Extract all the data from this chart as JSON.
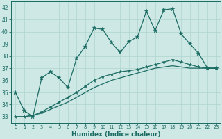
{
  "xlabel": "Humidex (Indice chaleur)",
  "xlim": [
    -0.5,
    23.5
  ],
  "ylim": [
    32.5,
    42.5
  ],
  "xticks": [
    0,
    1,
    2,
    3,
    4,
    5,
    6,
    7,
    8,
    9,
    10,
    11,
    12,
    13,
    14,
    15,
    16,
    17,
    18,
    19,
    20,
    21,
    22,
    23
  ],
  "yticks": [
    33,
    34,
    35,
    36,
    37,
    38,
    39,
    40,
    41,
    42
  ],
  "bg_color": "#cde8e5",
  "line_color": "#1a6b62",
  "line1_x": [
    0,
    1,
    2,
    3,
    4,
    5,
    6,
    7,
    8,
    9,
    10,
    11,
    12,
    13,
    14,
    15,
    16,
    17,
    18,
    19,
    20,
    21,
    22,
    23
  ],
  "line1_y": [
    35.0,
    33.5,
    33.0,
    36.2,
    36.7,
    36.2,
    35.4,
    37.8,
    38.8,
    40.3,
    40.2,
    39.1,
    38.3,
    39.2,
    39.6,
    41.7,
    40.1,
    41.8,
    41.9,
    39.8,
    39.0,
    38.2,
    37.0,
    37.0
  ],
  "line2_x": [
    0,
    1,
    2,
    3,
    4,
    5,
    6,
    7,
    8,
    9,
    10,
    11,
    12,
    13,
    14,
    15,
    16,
    17,
    18,
    19,
    20,
    21,
    22,
    23
  ],
  "line2_y": [
    33.0,
    33.0,
    33.1,
    33.3,
    33.6,
    33.9,
    34.2,
    34.6,
    35.0,
    35.4,
    35.7,
    36.0,
    36.2,
    36.4,
    36.6,
    36.8,
    37.0,
    37.1,
    37.2,
    37.1,
    37.0,
    37.0,
    37.0,
    37.0
  ],
  "line3_x": [
    0,
    1,
    2,
    3,
    4,
    5,
    6,
    7,
    8,
    9,
    10,
    11,
    12,
    13,
    14,
    15,
    16,
    17,
    18,
    19,
    20,
    21,
    22,
    23
  ],
  "line3_y": [
    33.0,
    33.0,
    33.1,
    33.4,
    33.8,
    34.2,
    34.6,
    35.0,
    35.5,
    36.0,
    36.3,
    36.5,
    36.7,
    36.8,
    36.9,
    37.1,
    37.3,
    37.5,
    37.7,
    37.5,
    37.3,
    37.1,
    37.0,
    37.0
  ],
  "grid_color": "#afd4cf",
  "lw": 0.9
}
